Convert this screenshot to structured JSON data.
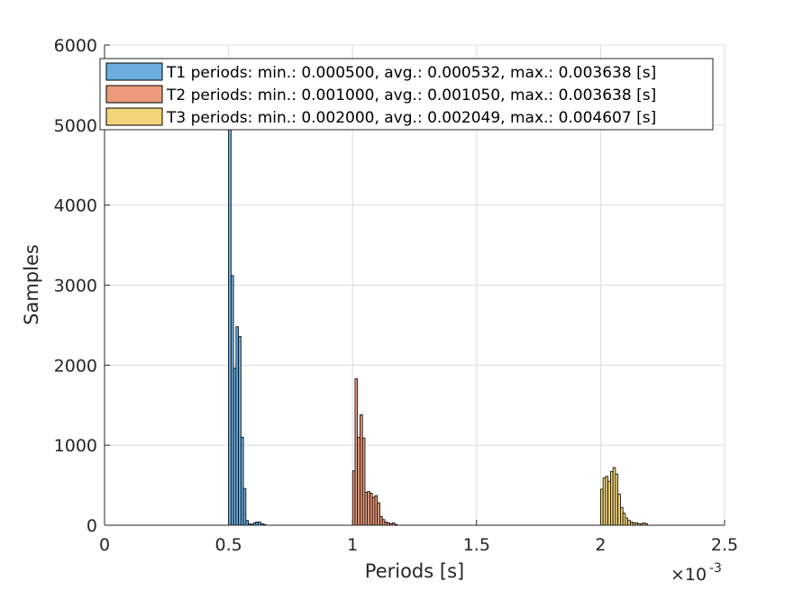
{
  "chart_data": {
    "type": "bar",
    "title": "",
    "xlabel": "Periods [s]",
    "ylabel": "Samples",
    "x_exponent_label": "×10",
    "x_exponent": "-3",
    "xlim": [
      0,
      0.0025
    ],
    "ylim": [
      0,
      6000
    ],
    "x_ticks": [
      0,
      0.0005,
      0.001,
      0.0015,
      0.002,
      0.0025
    ],
    "x_tick_labels": [
      "0",
      "0.5",
      "1",
      "1.5",
      "2",
      "2.5"
    ],
    "y_ticks": [
      0,
      1000,
      2000,
      3000,
      4000,
      5000,
      6000
    ],
    "y_tick_labels": [
      "0",
      "1000",
      "2000",
      "3000",
      "4000",
      "5000",
      "6000"
    ],
    "grid": true,
    "legend_position": "top",
    "bin_width": 1e-05,
    "series": [
      {
        "name": "T1 periods: min.: 0.000500, avg.: 0.000532, max.: 0.003638 [s]",
        "color": "#6aaee0",
        "bin_starts": [
          0.0005,
          0.00051,
          0.00052,
          0.00053,
          0.00054,
          0.00055,
          0.00056,
          0.00057,
          0.00058,
          0.00059,
          0.0006,
          0.00061,
          0.00062,
          0.00063,
          0.00064
        ],
        "counts": [
          5000,
          3120,
          1960,
          2480,
          2360,
          1100,
          460,
          60,
          20,
          10,
          30,
          40,
          40,
          20,
          10
        ]
      },
      {
        "name": "T2 periods: min.: 0.001000, avg.: 0.001050, max.: 0.003638 [s]",
        "color": "#eb9a7b",
        "bin_starts": [
          0.001,
          0.00101,
          0.00102,
          0.00103,
          0.00104,
          0.00105,
          0.00106,
          0.00107,
          0.00108,
          0.00109,
          0.0011,
          0.00111,
          0.00112,
          0.00113,
          0.00114,
          0.00115,
          0.00116,
          0.00117
        ],
        "counts": [
          680,
          1830,
          1100,
          1380,
          1090,
          410,
          420,
          400,
          350,
          370,
          280,
          110,
          70,
          40,
          30,
          20,
          30,
          10
        ]
      },
      {
        "name": "T3 periods: min.: 0.002000, avg.: 0.002049, max.: 0.004607 [s]",
        "color": "#f2d578",
        "bin_starts": [
          0.002,
          0.00201,
          0.00202,
          0.00203,
          0.00204,
          0.00205,
          0.00206,
          0.00207,
          0.00208,
          0.00209,
          0.0021,
          0.00211,
          0.00212,
          0.00213,
          0.00214,
          0.00215,
          0.00216,
          0.00217,
          0.00218
        ],
        "counts": [
          450,
          590,
          610,
          550,
          670,
          720,
          640,
          390,
          220,
          150,
          90,
          60,
          40,
          30,
          30,
          20,
          20,
          30,
          20
        ]
      }
    ]
  }
}
